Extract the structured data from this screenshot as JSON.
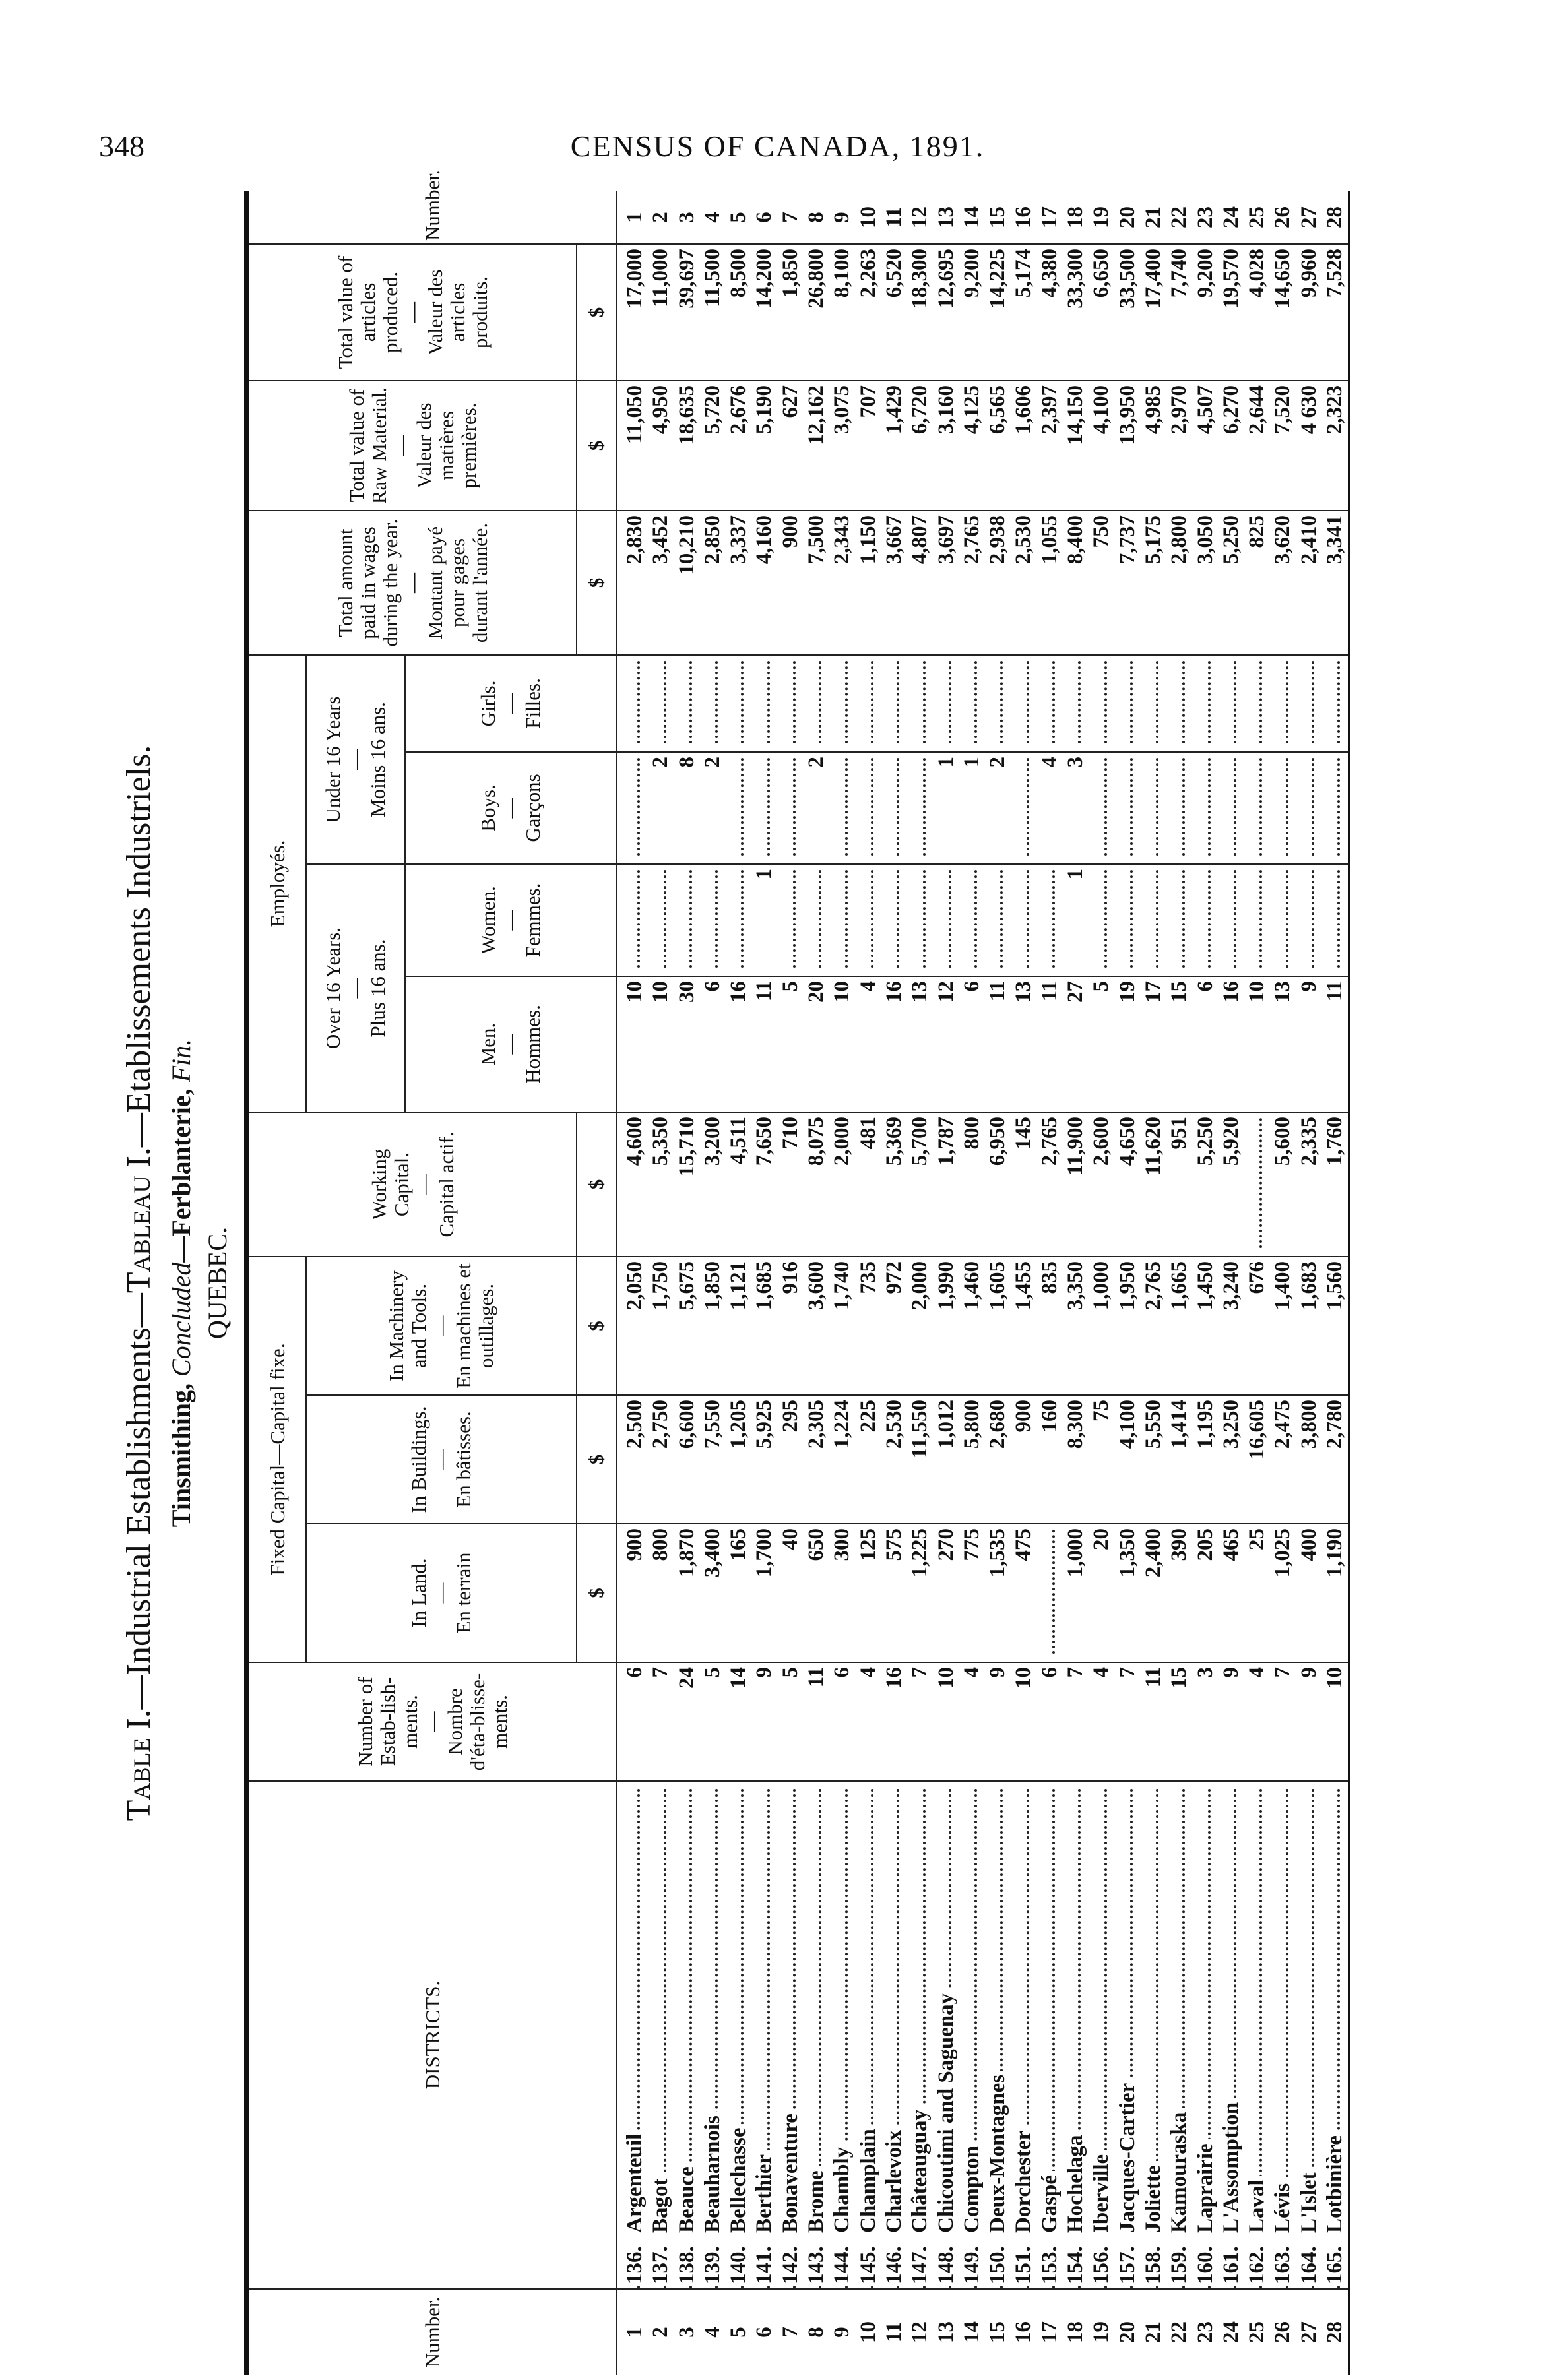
{
  "page": {
    "number": "348",
    "running_head": "CENSUS OF CANADA, 1891."
  },
  "titles": {
    "table_prefix": "Table I.",
    "table_en": "—Industrial Establishments—",
    "table_fr_prefix": "Tableau I.",
    "table_fr": "—Etablissements Industriels.",
    "industry": "Tinsmithing,",
    "concluded": "Concluded",
    "industry_fr": "—Ferblanterie,",
    "fin": "Fin.",
    "province": "QUEBEC."
  },
  "headers": {
    "number": "Number.",
    "districts": "DISTRICTS.",
    "establishments": {
      "en": "Number of Estab-lish-ments.",
      "fr": "Nombre d'éta-blisse-ments."
    },
    "fixed_capital": "Fixed Capital—Capital fixe.",
    "land": {
      "en": "In Land.",
      "fr": "En terrain"
    },
    "buildings": {
      "en": "In Buildings.",
      "fr": "En bâtisses."
    },
    "machinery": {
      "en": "In Machinery and Tools.",
      "fr": "En machines et outillages."
    },
    "working": {
      "en": "Working Capital.",
      "fr": "Capital actif."
    },
    "employes": "Employés.",
    "over16": {
      "en": "Over 16 Years.",
      "fr": "Plus 16 ans."
    },
    "under16": {
      "en": "Under 16 Years",
      "fr": "Moins 16 ans."
    },
    "men": {
      "en": "Men.",
      "fr": "Hommes."
    },
    "women": {
      "en": "Women.",
      "fr": "Femmes."
    },
    "boys": {
      "en": "Boys.",
      "fr": "Garçons"
    },
    "girls": {
      "en": "Girls.",
      "fr": "Filles."
    },
    "wages": {
      "en": "Total amount paid in wages during the year.",
      "fr": "Montant payé pour gages durant l'année."
    },
    "raw": {
      "en": "Total value of Raw Material.",
      "fr": "Valeur des matières premières."
    },
    "products": {
      "en": "Total value of articles produced.",
      "fr": "Valeur des articles produits."
    },
    "dash": "—",
    "dollar": "$"
  },
  "table": {
    "rows": [
      {
        "n": "1",
        "code": "136.",
        "district": "Argenteuil",
        "estab": "6",
        "land": "900",
        "buildings": "2,500",
        "machinery": "2,050",
        "working": "4,600",
        "men": "10",
        "women": "",
        "boys": "",
        "girls": "",
        "wages": "2,830",
        "raw": "11,050",
        "products": "17,000"
      },
      {
        "n": "2",
        "code": "137.",
        "district": "Bagot",
        "estab": "7",
        "land": "800",
        "buildings": "2,750",
        "machinery": "1,750",
        "working": "5,350",
        "men": "10",
        "women": "",
        "boys": "2",
        "girls": "",
        "wages": "3,452",
        "raw": "4,950",
        "products": "11,000"
      },
      {
        "n": "3",
        "code": "138.",
        "district": "Beauce",
        "estab": "24",
        "land": "1,870",
        "buildings": "6,600",
        "machinery": "5,675",
        "working": "15,710",
        "men": "30",
        "women": "",
        "boys": "8",
        "girls": "",
        "wages": "10,210",
        "raw": "18,635",
        "products": "39,697"
      },
      {
        "n": "4",
        "code": "139.",
        "district": "Beauharnois",
        "estab": "5",
        "land": "3,400",
        "buildings": "7,550",
        "machinery": "1,850",
        "working": "3,200",
        "men": "6",
        "women": "",
        "boys": "2",
        "girls": "",
        "wages": "2,850",
        "raw": "5,720",
        "products": "11,500"
      },
      {
        "n": "5",
        "code": "140.",
        "district": "Bellechasse",
        "estab": "14",
        "land": "165",
        "buildings": "1,205",
        "machinery": "1,121",
        "working": "4,511",
        "men": "16",
        "women": "",
        "boys": "",
        "girls": "",
        "wages": "3,337",
        "raw": "2,676",
        "products": "8,500"
      },
      {
        "n": "6",
        "code": "141.",
        "district": "Berthier",
        "estab": "9",
        "land": "1,700",
        "buildings": "5,925",
        "machinery": "1,685",
        "working": "7,650",
        "men": "11",
        "women": "1",
        "boys": "",
        "girls": "",
        "wages": "4,160",
        "raw": "5,190",
        "products": "14,200"
      },
      {
        "n": "7",
        "code": "142.",
        "district": "Bonaventure",
        "estab": "5",
        "land": "40",
        "buildings": "295",
        "machinery": "916",
        "working": "710",
        "men": "5",
        "women": "",
        "boys": "",
        "girls": "",
        "wages": "900",
        "raw": "627",
        "products": "1,850"
      },
      {
        "n": "8",
        "code": "143.",
        "district": "Brome",
        "estab": "11",
        "land": "650",
        "buildings": "2,305",
        "machinery": "3,600",
        "working": "8,075",
        "men": "20",
        "women": "",
        "boys": "2",
        "girls": "",
        "wages": "7,500",
        "raw": "12,162",
        "products": "26,800"
      },
      {
        "n": "9",
        "code": "144.",
        "district": "Chambly",
        "estab": "6",
        "land": "300",
        "buildings": "1,224",
        "machinery": "1,740",
        "working": "2,000",
        "men": "10",
        "women": "",
        "boys": "",
        "girls": "",
        "wages": "2,343",
        "raw": "3,075",
        "products": "8,100"
      },
      {
        "n": "10",
        "code": "145.",
        "district": "Champlain",
        "estab": "4",
        "land": "125",
        "buildings": "225",
        "machinery": "735",
        "working": "481",
        "men": "4",
        "women": "",
        "boys": "",
        "girls": "",
        "wages": "1,150",
        "raw": "707",
        "products": "2,263"
      },
      {
        "n": "11",
        "code": "146.",
        "district": "Charlevoix",
        "estab": "16",
        "land": "575",
        "buildings": "2,530",
        "machinery": "972",
        "working": "5,369",
        "men": "16",
        "women": "",
        "boys": "",
        "girls": "",
        "wages": "3,667",
        "raw": "1,429",
        "products": "6,520"
      },
      {
        "n": "12",
        "code": "147.",
        "district": "Châteauguay",
        "estab": "7",
        "land": "1,225",
        "buildings": "11,550",
        "machinery": "2,000",
        "working": "5,700",
        "men": "13",
        "women": "",
        "boys": "",
        "girls": "",
        "wages": "4,807",
        "raw": "6,720",
        "products": "18,300"
      },
      {
        "n": "13",
        "code": "148.",
        "district": "Chicoutimi and Saguenay",
        "estab": "10",
        "land": "270",
        "buildings": "1,012",
        "machinery": "1,990",
        "working": "1,787",
        "men": "12",
        "women": "",
        "boys": "1",
        "girls": "",
        "wages": "3,697",
        "raw": "3,160",
        "products": "12,695"
      },
      {
        "n": "14",
        "code": "149.",
        "district": "Compton",
        "estab": "4",
        "land": "775",
        "buildings": "5,800",
        "machinery": "1,460",
        "working": "800",
        "men": "6",
        "women": "",
        "boys": "1",
        "girls": "",
        "wages": "2,765",
        "raw": "4,125",
        "products": "9,200"
      },
      {
        "n": "15",
        "code": "150.",
        "district": "Deux-Montagnes",
        "estab": "9",
        "land": "1,535",
        "buildings": "2,680",
        "machinery": "1,605",
        "working": "6,950",
        "men": "11",
        "women": "",
        "boys": "2",
        "girls": "",
        "wages": "2,938",
        "raw": "6,565",
        "products": "14,225"
      },
      {
        "n": "16",
        "code": "151.",
        "district": "Dorchester",
        "estab": "10",
        "land": "475",
        "buildings": "900",
        "machinery": "1,455",
        "working": "145",
        "men": "13",
        "women": "",
        "boys": "",
        "girls": "",
        "wages": "2,530",
        "raw": "1,606",
        "products": "5,174"
      },
      {
        "n": "17",
        "code": "153.",
        "district": "Gaspé",
        "estab": "6",
        "land": "",
        "buildings": "160",
        "machinery": "835",
        "working": "2,765",
        "men": "11",
        "women": "",
        "boys": "4",
        "girls": "",
        "wages": "1,055",
        "raw": "2,397",
        "products": "4,380"
      },
      {
        "n": "18",
        "code": "154.",
        "district": "Hochelaga",
        "estab": "7",
        "land": "1,000",
        "buildings": "8,300",
        "machinery": "3,350",
        "working": "11,900",
        "men": "27",
        "women": "1",
        "boys": "3",
        "girls": "",
        "wages": "8,400",
        "raw": "14,150",
        "products": "33,300"
      },
      {
        "n": "19",
        "code": "156.",
        "district": "Iberville",
        "estab": "4",
        "land": "20",
        "buildings": "75",
        "machinery": "1,000",
        "working": "2,600",
        "men": "5",
        "women": "",
        "boys": "",
        "girls": "",
        "wages": "750",
        "raw": "4,100",
        "products": "6,650"
      },
      {
        "n": "20",
        "code": "157.",
        "district": "Jacques-Cartier",
        "estab": "7",
        "land": "1,350",
        "buildings": "4,100",
        "machinery": "1,950",
        "working": "4,650",
        "men": "19",
        "women": "",
        "boys": "",
        "girls": "",
        "wages": "7,737",
        "raw": "13,950",
        "products": "33,500"
      },
      {
        "n": "21",
        "code": "158.",
        "district": "Joliette",
        "estab": "11",
        "land": "2,400",
        "buildings": "5,550",
        "machinery": "2,765",
        "working": "11,620",
        "men": "17",
        "women": "",
        "boys": "",
        "girls": "",
        "wages": "5,175",
        "raw": "4,985",
        "products": "17,400"
      },
      {
        "n": "22",
        "code": "159.",
        "district": "Kamouraska",
        "estab": "15",
        "land": "390",
        "buildings": "1,414",
        "machinery": "1,665",
        "working": "951",
        "men": "15",
        "women": "",
        "boys": "",
        "girls": "",
        "wages": "2,800",
        "raw": "2,970",
        "products": "7,740"
      },
      {
        "n": "23",
        "code": "160.",
        "district": "Laprairie",
        "estab": "3",
        "land": "205",
        "buildings": "1,195",
        "machinery": "1,450",
        "working": "5,250",
        "men": "6",
        "women": "",
        "boys": "",
        "girls": "",
        "wages": "3,050",
        "raw": "4,507",
        "products": "9,200"
      },
      {
        "n": "24",
        "code": "161.",
        "district": "L'Assomption",
        "estab": "9",
        "land": "465",
        "buildings": "3,250",
        "machinery": "3,240",
        "working": "5,920",
        "men": "16",
        "women": "",
        "boys": "",
        "girls": "",
        "wages": "5,250",
        "raw": "6,270",
        "products": "19,570"
      },
      {
        "n": "25",
        "code": "162.",
        "district": "Laval",
        "estab": "4",
        "land": "25",
        "buildings": "16,605",
        "machinery": "676",
        "working": "",
        "men": "10",
        "women": "",
        "boys": "",
        "girls": "",
        "wages": "825",
        "raw": "2,644",
        "products": "4,028"
      },
      {
        "n": "26",
        "code": "163.",
        "district": "Lévis",
        "estab": "7",
        "land": "1,025",
        "buildings": "2,475",
        "machinery": "1,400",
        "working": "5,600",
        "men": "13",
        "women": "",
        "boys": "",
        "girls": "",
        "wages": "3,620",
        "raw": "7,520",
        "products": "14,650"
      },
      {
        "n": "27",
        "code": "164.",
        "district": "L'Islet",
        "estab": "9",
        "land": "400",
        "buildings": "3,800",
        "machinery": "1,683",
        "working": "2,335",
        "men": "9",
        "women": "",
        "boys": "",
        "girls": "",
        "wages": "2,410",
        "raw": "4 630",
        "products": "9,960"
      },
      {
        "n": "28",
        "code": "165.",
        "district": "Lotbinière",
        "estab": "10",
        "land": "1,190",
        "buildings": "2,780",
        "machinery": "1,560",
        "working": "1,760",
        "men": "11",
        "women": "",
        "boys": "",
        "girls": "",
        "wages": "3,341",
        "raw": "2,323",
        "products": "7,528"
      }
    ]
  }
}
